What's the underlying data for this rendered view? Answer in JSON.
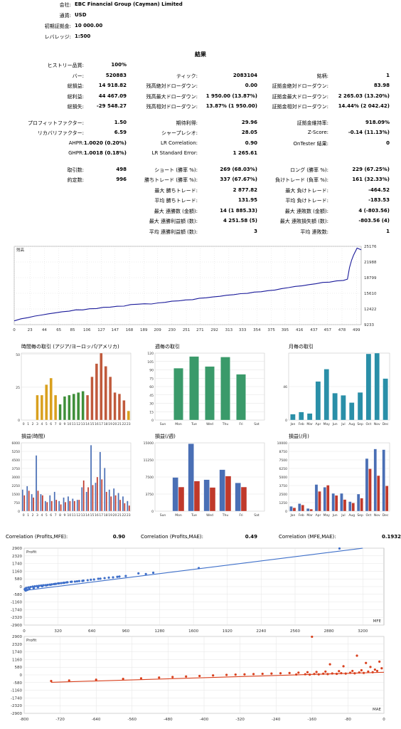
{
  "header": {
    "company_label": "会社:",
    "company": "EBC Financial Group (Cayman) Limited",
    "currency_label": "通貨:",
    "currency": "USD",
    "deposit_label": "初期証拠金:",
    "deposit": "10 000.00",
    "leverage_label": "レバレッジ:",
    "leverage": "1:500"
  },
  "results": {
    "title": "結果",
    "rows": [
      [
        {
          "l": "ヒストリー品質:",
          "v": "100%"
        },
        null,
        null
      ],
      [
        {
          "l": "バー:",
          "v": "520883"
        },
        {
          "l": "ティック:",
          "v": "2083104"
        },
        {
          "l": "銘柄:",
          "v": "1"
        }
      ],
      [
        {
          "l": "総損益:",
          "v": "14 918.82"
        },
        {
          "l": "残高絶対ドローダウン:",
          "v": "0.00"
        },
        {
          "l": "証拠金絶対ドローダウン:",
          "v": "83.98"
        }
      ],
      [
        {
          "l": "総利益:",
          "v": "44 467.09"
        },
        {
          "l": "残高最大ドローダウン:",
          "v": "1 950.00 (13.87%)"
        },
        {
          "l": "証拠金最大ドローダウン:",
          "v": "2 265.03 (13.20%)"
        }
      ],
      [
        {
          "l": "総損失:",
          "v": "-29 548.27"
        },
        {
          "l": "残高相対ドローダウン:",
          "v": "13.87% (1 950.00)"
        },
        {
          "l": "証拠金相対ドローダウン:",
          "v": "14.44% (2 042.42)"
        }
      ],
      null,
      [
        {
          "l": "プロフィットファクター:",
          "v": "1.50"
        },
        {
          "l": "期待利得:",
          "v": "29.96"
        },
        {
          "l": "証拠金維持率:",
          "v": "918.09%"
        }
      ],
      [
        {
          "l": "リカバリファクター:",
          "v": "6.59"
        },
        {
          "l": "シャープレシオ:",
          "v": "28.05"
        },
        {
          "l": "Z-Score:",
          "v": "-0.14 (11.13%)"
        }
      ],
      [
        {
          "l": "AHPR:",
          "v": "1.0020 (0.20%)"
        },
        {
          "l": "LR Correlation:",
          "v": "0.90"
        },
        {
          "l": "OnTester 結果:",
          "v": "0"
        }
      ],
      [
        {
          "l": "GHPR:",
          "v": "1.0018 (0.18%)"
        },
        {
          "l": "LR Standard Error:",
          "v": "1 265.61"
        },
        null
      ],
      null,
      [
        {
          "l": "取引数:",
          "v": "498"
        },
        {
          "l": "ショート (勝率 %):",
          "v": "269 (68.03%)"
        },
        {
          "l": "ロング (勝率 %):",
          "v": "229 (67.25%)"
        }
      ],
      [
        {
          "l": "約定数:",
          "v": "996"
        },
        {
          "l": "勝ちトレード (勝率 %):",
          "v": "337 (67.67%)"
        },
        {
          "l": "負けトレード (負率 %):",
          "v": "161 (32.33%)"
        }
      ],
      [
        null,
        {
          "l": "最大 勝ちトレード:",
          "v": "2 877.82"
        },
        {
          "l": "最大 負けトレード:",
          "v": "-464.52"
        }
      ],
      [
        null,
        {
          "l": "平均 勝ちトレード:",
          "v": "131.95"
        },
        {
          "l": "平均 負けトレード:",
          "v": "-183.53"
        }
      ],
      [
        null,
        {
          "l": "最大 連勝数 (金額):",
          "v": "14 (1 885.33)"
        },
        {
          "l": "最大 連敗数 (金額):",
          "v": "4 (-803.56)"
        }
      ],
      [
        null,
        {
          "l": "最大 連勝利益額 (数):",
          "v": "4 251.58 (5)"
        },
        {
          "l": "最大 連敗損失額 (数):",
          "v": "-803.56 (4)"
        }
      ],
      [
        null,
        {
          "l": "平均 連勝利益額 (数):",
          "v": "3"
        },
        {
          "l": "平均 連敗数:",
          "v": "1"
        }
      ]
    ]
  },
  "chart_data": [
    {
      "type": "line",
      "title": "残高",
      "x_ticks": [
        "0",
        "23",
        "44",
        "65",
        "85",
        "106",
        "127",
        "147",
        "168",
        "189",
        "209",
        "230",
        "251",
        "271",
        "292",
        "313",
        "333",
        "354",
        "375",
        "395",
        "416",
        "437",
        "457",
        "478",
        "499"
      ],
      "y_ticks": [
        "25176",
        "21988",
        "18799",
        "15610",
        "12422",
        "9233"
      ],
      "ylim": [
        9233,
        25176
      ],
      "xlim": [
        0,
        506
      ],
      "series": [
        {
          "x": [
            0,
            10,
            20,
            30,
            40,
            50,
            60,
            70,
            80,
            90,
            100,
            110,
            120,
            130,
            140,
            150,
            160,
            170,
            180,
            190,
            200,
            210,
            220,
            230,
            240,
            250,
            260,
            270,
            280,
            290,
            300,
            310,
            320,
            330,
            340,
            350,
            360,
            370,
            380,
            390,
            400,
            410,
            420,
            430,
            440,
            450,
            460,
            470,
            480,
            486,
            489,
            492,
            495,
            500,
            506
          ],
          "y": [
            10000,
            10400,
            10700,
            10900,
            11200,
            11400,
            11700,
            11850,
            12000,
            12200,
            12300,
            12450,
            12550,
            12700,
            12800,
            12950,
            13050,
            13250,
            13400,
            13450,
            13500,
            13650,
            13800,
            13950,
            14150,
            14250,
            14350,
            14550,
            14700,
            14850,
            15050,
            15150,
            15350,
            15500,
            15650,
            15850,
            15950,
            16100,
            16350,
            16550,
            16800,
            16950,
            17150,
            17350,
            17600,
            17750,
            17900,
            18100,
            18300,
            18500,
            20900,
            22300,
            23500,
            24800,
            24500
          ]
        }
      ]
    },
    {
      "type": "bar",
      "title": "時間毎の取引 (アジア/ヨーロッパ/アメリカ)",
      "categories": [
        "0",
        "1",
        "2",
        "3",
        "4",
        "5",
        "6",
        "7",
        "8",
        "9",
        "10",
        "11",
        "12",
        "13",
        "14",
        "15",
        "16",
        "17",
        "18",
        "19",
        "20",
        "21",
        "22",
        "23"
      ],
      "values": [
        0,
        0,
        0,
        19,
        19,
        27,
        32,
        19,
        12,
        18,
        19,
        20,
        21,
        22,
        19,
        33,
        43,
        51,
        41,
        33,
        21,
        20,
        15,
        7
      ],
      "session_colors": [
        "#d9a01e",
        "#d9a01e",
        "#d9a01e",
        "#d9a01e",
        "#d9a01e",
        "#d9a01e",
        "#d9a01e",
        "#d9a01e",
        "#3f8f3a",
        "#3f8f3a",
        "#3f8f3a",
        "#3f8f3a",
        "#3f8f3a",
        "#3f8f3a",
        "#c05a3c",
        "#c05a3c",
        "#c05a3c",
        "#c05a3c",
        "#c05a3c",
        "#c05a3c",
        "#c05a3c",
        "#c05a3c",
        "#c05a3c",
        "#d9a01e"
      ],
      "y_ticks": [
        "0",
        "25",
        "50"
      ],
      "ylim": [
        0,
        51
      ]
    },
    {
      "type": "bar",
      "title": "週毎の取引",
      "categories": [
        "Sun",
        "Mon",
        "Tue",
        "Wed",
        "Thu",
        "Fri",
        "Sat"
      ],
      "values": [
        0,
        93,
        114,
        96,
        113,
        82,
        0
      ],
      "color": "#3a9a6a",
      "y_ticks": [
        "0",
        "15",
        "30",
        "45",
        "60",
        "75",
        "90",
        "105",
        "120"
      ],
      "ylim": [
        0,
        120
      ]
    },
    {
      "type": "bar",
      "title": "月毎の取引",
      "categories": [
        "Jan",
        "Feb",
        "Mar",
        "Apr",
        "May",
        "Jun",
        "Jul",
        "Aug",
        "Sep",
        "Oct",
        "Nov",
        "Dec"
      ],
      "values": [
        8,
        11,
        9,
        53,
        70,
        37,
        34,
        24,
        38,
        91,
        92,
        57
      ],
      "color": "#2a8fa8",
      "y_ticks": [
        "0",
        "46"
      ],
      "ylim": [
        0,
        92
      ]
    },
    {
      "type": "bar",
      "title": "損益(時間)",
      "categories": [
        "0",
        "1",
        "2",
        "3",
        "4",
        "5",
        "6",
        "7",
        "8",
        "9",
        "10",
        "11",
        "12",
        "13",
        "14",
        "15",
        "16",
        "17",
        "18",
        "19",
        "20",
        "21",
        "22",
        "23"
      ],
      "series": [
        {
          "name": "profit",
          "color": "#4a6fb5",
          "values": [
            1900,
            2200,
            1500,
            4900,
            1500,
            900,
            1400,
            1700,
            900,
            1200,
            1300,
            1100,
            1000,
            2100,
            1700,
            5800,
            2500,
            5200,
            3800,
            1900,
            2000,
            1600,
            1300,
            900
          ]
        },
        {
          "name": "loss",
          "color": "#c0392b",
          "values": [
            1400,
            1800,
            1200,
            1800,
            1400,
            800,
            900,
            1000,
            600,
            800,
            900,
            900,
            1000,
            2700,
            2100,
            2300,
            3000,
            2800,
            1700,
            1300,
            1400,
            1000,
            700,
            500
          ]
        }
      ],
      "y_ticks": [
        "0",
        "750",
        "1500",
        "2250",
        "3000",
        "3750",
        "4500",
        "5250",
        "6000"
      ],
      "ylim": [
        0,
        6000
      ]
    },
    {
      "type": "bar",
      "title": "損益(/週)",
      "categories": [
        "Sun",
        "Mon",
        "Tue",
        "Wed",
        "Thu",
        "Fri",
        "Sat"
      ],
      "series": [
        {
          "name": "profit",
          "color": "#4a6fb5",
          "values": [
            0,
            7400,
            14800,
            6900,
            9100,
            6200,
            0
          ]
        },
        {
          "name": "loss",
          "color": "#c0392b",
          "values": [
            0,
            5300,
            6600,
            5200,
            7700,
            5300,
            0
          ]
        }
      ],
      "y_ticks": [
        "0",
        "3750",
        "7500",
        "11250",
        "15000"
      ],
      "ylim": [
        0,
        15000
      ]
    },
    {
      "type": "bar",
      "title": "損益(/月)",
      "categories": [
        "Jan",
        "Feb",
        "Mar",
        "Apr",
        "May",
        "Jun",
        "Jul",
        "Aug",
        "Sep",
        "Oct",
        "Nov",
        "Dec"
      ],
      "series": [
        {
          "name": "profit",
          "color": "#4a6fb5",
          "values": [
            700,
            1100,
            400,
            3900,
            3500,
            2600,
            2600,
            1400,
            2500,
            7700,
            9100,
            9000
          ]
        },
        {
          "name": "loss",
          "color": "#c0392b",
          "values": [
            500,
            900,
            300,
            2900,
            3800,
            2300,
            1700,
            1200,
            1900,
            6200,
            5200,
            3700
          ]
        }
      ],
      "y_ticks": [
        "0",
        "1250",
        "2500",
        "3750",
        "5000",
        "6250",
        "7500",
        "8750",
        "10000"
      ],
      "ylim": [
        0,
        10000
      ]
    },
    {
      "type": "scatter",
      "title": "Profit",
      "xlabel": "MFE",
      "x_ticks": [
        "0",
        "320",
        "640",
        "960",
        "1280",
        "1600",
        "1920",
        "2240",
        "2560",
        "2880",
        "3200"
      ],
      "y_ticks": [
        "2900",
        "2320",
        "1740",
        "1160",
        "580",
        "0",
        "-580",
        "-1160",
        "-1740",
        "-2320",
        "-2900"
      ],
      "xlim": [
        0,
        3400
      ],
      "ylim": [
        -2900,
        2900
      ],
      "color": "#3e6fc9",
      "trend": [
        [
          0,
          -300
        ],
        [
          3200,
          2900
        ]
      ],
      "points": [
        [
          2980,
          2877
        ],
        [
          1650,
          1400
        ],
        [
          1220,
          1050
        ],
        [
          1080,
          1000
        ],
        [
          1150,
          950
        ],
        [
          900,
          760
        ],
        [
          840,
          700
        ],
        [
          720,
          600
        ],
        [
          630,
          520
        ],
        [
          600,
          480
        ],
        [
          560,
          450
        ],
        [
          520,
          420
        ],
        [
          480,
          380
        ],
        [
          440,
          360
        ],
        [
          400,
          320
        ],
        [
          380,
          290
        ],
        [
          350,
          260
        ],
        [
          320,
          240
        ],
        [
          300,
          210
        ],
        [
          280,
          190
        ],
        [
          260,
          170
        ],
        [
          240,
          150
        ],
        [
          220,
          130
        ],
        [
          200,
          110
        ],
        [
          180,
          100
        ],
        [
          160,
          80
        ],
        [
          140,
          60
        ],
        [
          120,
          40
        ],
        [
          100,
          20
        ],
        [
          80,
          0
        ],
        [
          60,
          -30
        ],
        [
          40,
          -60
        ],
        [
          20,
          -100
        ],
        [
          10,
          -150
        ],
        [
          5,
          -200
        ],
        [
          30,
          -250
        ],
        [
          15,
          -300
        ],
        [
          50,
          -180
        ],
        [
          90,
          -120
        ],
        [
          130,
          -40
        ],
        [
          170,
          30
        ],
        [
          210,
          90
        ],
        [
          250,
          140
        ],
        [
          290,
          200
        ],
        [
          330,
          250
        ],
        [
          370,
          280
        ],
        [
          410,
          330
        ],
        [
          450,
          370
        ],
        [
          500,
          400
        ],
        [
          550,
          430
        ],
        [
          660,
          540
        ],
        [
          700,
          590
        ],
        [
          760,
          640
        ],
        [
          800,
          680
        ],
        [
          880,
          740
        ],
        [
          960,
          800
        ]
      ]
    },
    {
      "type": "scatter",
      "title": "Profit",
      "xlabel": "MAE",
      "x_ticks": [
        "-800",
        "-720",
        "-640",
        "-560",
        "-480",
        "-400",
        "-320",
        "-240",
        "-160",
        "-80",
        "0"
      ],
      "y_ticks": [
        "2900",
        "2320",
        "1740",
        "1160",
        "580",
        "0",
        "-580",
        "-1160",
        "-1740",
        "-2320",
        "-2900"
      ],
      "xlim": [
        -800,
        0
      ],
      "ylim": [
        -2900,
        2900
      ],
      "color": "#d9411e",
      "trend": [
        [
          -740,
          -560
        ],
        [
          0,
          200
        ]
      ],
      "points": [
        [
          -160,
          2877
        ],
        [
          -60,
          1450
        ],
        [
          -10,
          1000
        ],
        [
          -40,
          900
        ],
        [
          -120,
          800
        ],
        [
          -90,
          650
        ],
        [
          -30,
          600
        ],
        [
          -5,
          500
        ],
        [
          -20,
          400
        ],
        [
          -50,
          350
        ],
        [
          -70,
          300
        ],
        [
          -100,
          280
        ],
        [
          -130,
          250
        ],
        [
          -150,
          220
        ],
        [
          -170,
          200
        ],
        [
          -190,
          170
        ],
        [
          -210,
          140
        ],
        [
          -230,
          120
        ],
        [
          -250,
          100
        ],
        [
          -270,
          80
        ],
        [
          -290,
          60
        ],
        [
          -310,
          40
        ],
        [
          -330,
          20
        ],
        [
          -350,
          0
        ],
        [
          -380,
          -40
        ],
        [
          -410,
          -80
        ],
        [
          -440,
          -120
        ],
        [
          -470,
          -160
        ],
        [
          -500,
          -200
        ],
        [
          -540,
          -260
        ],
        [
          -580,
          -300
        ],
        [
          -640,
          -360
        ],
        [
          -700,
          -420
        ],
        [
          -740,
          -464
        ],
        [
          -25,
          200
        ],
        [
          -45,
          150
        ],
        [
          -65,
          120
        ],
        [
          -85,
          100
        ],
        [
          -105,
          80
        ],
        [
          -125,
          60
        ],
        [
          -145,
          40
        ],
        [
          -165,
          20
        ],
        [
          -15,
          300
        ],
        [
          -35,
          250
        ],
        [
          -55,
          180
        ],
        [
          -75,
          160
        ],
        [
          -95,
          130
        ],
        [
          -115,
          110
        ],
        [
          -135,
          90
        ],
        [
          -155,
          70
        ],
        [
          -175,
          50
        ],
        [
          -195,
          30
        ]
      ]
    }
  ],
  "correlations": [
    {
      "label": "Correlation (Profits,MFE):",
      "value": "0.90"
    },
    {
      "label": "Correlation (Profits,MAE):",
      "value": "0.49"
    },
    {
      "label": "Correlation (MFE,MAE):",
      "value": "0.1932"
    }
  ]
}
